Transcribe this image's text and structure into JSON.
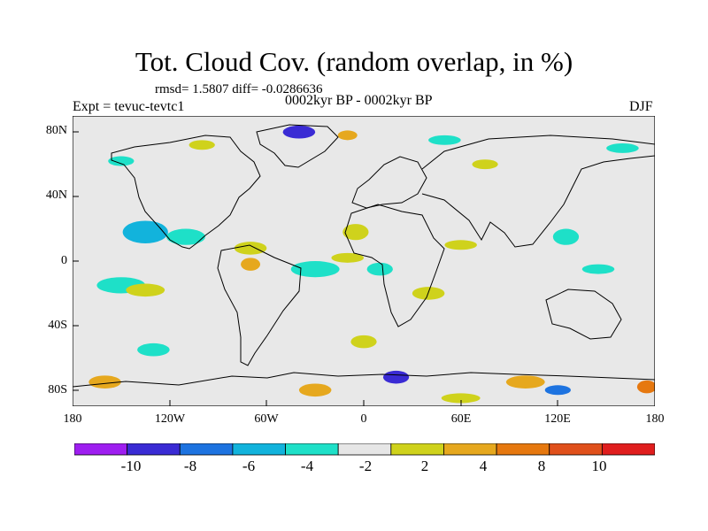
{
  "figure": {
    "title": "Tot. Cloud Cov. (random overlap, in %)",
    "stats": "rmsd= 1.5807 diff= -0.0286636",
    "experiment": "Expt = tevuc-tevtc1",
    "period": "0002kyr BP - 0002kyr BP",
    "season": "DJF"
  },
  "map": {
    "projection": "cylindrical equidistant",
    "lon_range": [
      -180,
      180
    ],
    "lat_range": [
      -90,
      90
    ],
    "background_color": "#e8e8e8",
    "coastline_color": "#000000",
    "y_ticks": [
      {
        "lat": 80,
        "label": "80N"
      },
      {
        "lat": 40,
        "label": "40N"
      },
      {
        "lat": 0,
        "label": "0"
      },
      {
        "lat": -40,
        "label": "40S"
      },
      {
        "lat": -80,
        "label": "80S"
      }
    ],
    "x_ticks": [
      {
        "lon": -180,
        "label": "180"
      },
      {
        "lon": -120,
        "label": "120W"
      },
      {
        "lon": -60,
        "label": "60W"
      },
      {
        "lon": 0,
        "label": "0"
      },
      {
        "lon": 60,
        "label": "60E"
      },
      {
        "lon": 120,
        "label": "120E"
      },
      {
        "lon": 180,
        "label": "180"
      }
    ],
    "anomalies": [
      {
        "lon": -135,
        "lat": 18,
        "value": -4.5,
        "rx": 14,
        "ry": 7
      },
      {
        "lon": -110,
        "lat": 15,
        "value": -2.5,
        "rx": 12,
        "ry": 5
      },
      {
        "lon": -70,
        "lat": 8,
        "value": 2.5,
        "rx": 10,
        "ry": 4
      },
      {
        "lon": -70,
        "lat": -2,
        "value": 5,
        "rx": 6,
        "ry": 4
      },
      {
        "lon": -30,
        "lat": -5,
        "value": -3,
        "rx": 15,
        "ry": 5
      },
      {
        "lon": -10,
        "lat": 2,
        "value": 2.5,
        "rx": 10,
        "ry": 3
      },
      {
        "lon": -5,
        "lat": 18,
        "value": 2.5,
        "rx": 8,
        "ry": 5
      },
      {
        "lon": 60,
        "lat": 10,
        "value": 2.5,
        "rx": 10,
        "ry": 3
      },
      {
        "lon": 125,
        "lat": 15,
        "value": -3,
        "rx": 8,
        "ry": 5
      },
      {
        "lon": 145,
        "lat": -5,
        "value": -2.5,
        "rx": 10,
        "ry": 3
      },
      {
        "lon": -150,
        "lat": -15,
        "value": -2.5,
        "rx": 15,
        "ry": 5
      },
      {
        "lon": -135,
        "lat": -18,
        "value": 2.5,
        "rx": 12,
        "ry": 4
      },
      {
        "lon": -40,
        "lat": 80,
        "value": -9,
        "rx": 10,
        "ry": 4
      },
      {
        "lon": -10,
        "lat": 78,
        "value": 5,
        "rx": 6,
        "ry": 3
      },
      {
        "lon": -100,
        "lat": 72,
        "value": 2.5,
        "rx": 8,
        "ry": 3
      },
      {
        "lon": 50,
        "lat": 75,
        "value": -2.5,
        "rx": 10,
        "ry": 3
      },
      {
        "lon": 160,
        "lat": 70,
        "value": -2.5,
        "rx": 10,
        "ry": 3
      },
      {
        "lon": -150,
        "lat": 62,
        "value": -2.5,
        "rx": 8,
        "ry": 3
      },
      {
        "lon": 10,
        "lat": -5,
        "value": -3,
        "rx": 8,
        "ry": 4
      },
      {
        "lon": 40,
        "lat": -20,
        "value": 2.5,
        "rx": 10,
        "ry": 4
      },
      {
        "lon": -130,
        "lat": -55,
        "value": -2.5,
        "rx": 10,
        "ry": 4
      },
      {
        "lon": 0,
        "lat": -50,
        "value": 2.5,
        "rx": 8,
        "ry": 4
      },
      {
        "lon": 20,
        "lat": -72,
        "value": -9,
        "rx": 8,
        "ry": 4
      },
      {
        "lon": -160,
        "lat": -75,
        "value": 5,
        "rx": 10,
        "ry": 4
      },
      {
        "lon": 100,
        "lat": -75,
        "value": 5,
        "rx": 12,
        "ry": 4
      },
      {
        "lon": 120,
        "lat": -80,
        "value": -7,
        "rx": 8,
        "ry": 3
      },
      {
        "lon": 175,
        "lat": -78,
        "value": 9,
        "rx": 6,
        "ry": 4
      },
      {
        "lon": -30,
        "lat": -80,
        "value": 5,
        "rx": 10,
        "ry": 4
      },
      {
        "lon": 60,
        "lat": -85,
        "value": 2.5,
        "rx": 12,
        "ry": 3
      },
      {
        "lon": 75,
        "lat": 60,
        "value": 2.5,
        "rx": 8,
        "ry": 3
      }
    ]
  },
  "colorbar": {
    "levels": [
      -10,
      -8,
      -6,
      -4,
      -2,
      2,
      4,
      8,
      10
    ],
    "colors": [
      "#9e1ef0",
      "#3a2bd4",
      "#1d73e0",
      "#12b3dc",
      "#1ee0c8",
      "#e6e6e6",
      "#cfd21c",
      "#e6a81e",
      "#e6780f",
      "#e0501b",
      "#e01e1e"
    ],
    "labels": [
      "-10",
      "-8",
      "-6",
      "-4",
      "-2",
      "2",
      "4",
      "8",
      "10"
    ]
  }
}
